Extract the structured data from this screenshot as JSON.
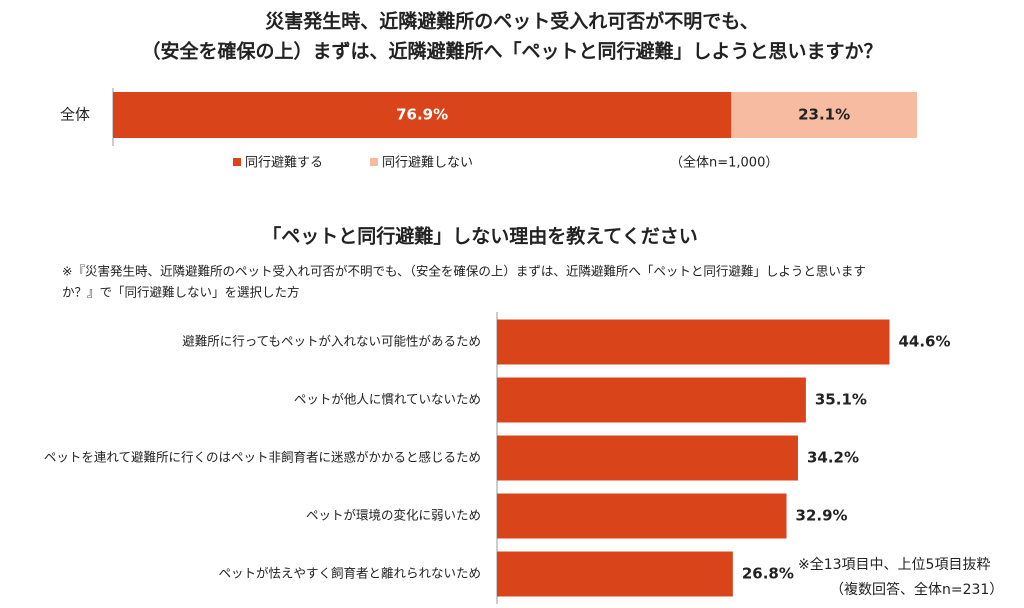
{
  "chart_data": [
    {
      "type": "stacked-bar",
      "title": [
        "災害発生時、近隣避難所のペット受入れ可否が不明でも、",
        "（安全を確保の上）まずは、近隣避難所へ「ペットと同行避難」しようと思いますか？"
      ],
      "categories": [
        "全体"
      ],
      "series": [
        {
          "name": "同行避難する",
          "color": "#d9441a",
          "values": [
            76.9
          ],
          "value_labels": [
            "76.9%"
          ]
        },
        {
          "name": "同行避難しない",
          "color": "#f6bba0",
          "values": [
            23.1
          ],
          "value_labels": [
            "23.1%"
          ]
        }
      ],
      "xlim": [
        0,
        100
      ],
      "note": "（全体n=1,000）"
    },
    {
      "type": "bar",
      "title": "「ペットと同行避難」しない理由を教えてください",
      "subtitle": [
        "※『災害発生時、近隣避難所のペット受入れ可否が不明でも、（安全を確保の上）まずは、近隣避難所へ「ペットと同行避難」しようと思います",
        "か？』で「同行避難しない」を選択した方"
      ],
      "categories": [
        "避難所に行ってもペットが入れない可能性があるため",
        "ペットが他人に慣れていないため",
        "ペットを連れて避難所に行くのはペット非飼育者に迷惑がかかると感じるため",
        "ペットが環境の変化に弱いため",
        "ペットが怯えやすく飼育者と離れられないため"
      ],
      "values": [
        44.6,
        35.1,
        34.2,
        32.9,
        26.8
      ],
      "value_labels": [
        "44.6%",
        "35.1%",
        "34.2%",
        "32.9%",
        "26.8%"
      ],
      "color": "#d9441a",
      "xlim": [
        0,
        50
      ],
      "notes": [
        "※全13項目中、上位5項目抜粋",
        "（複数回答、全体n=231）"
      ]
    }
  ]
}
